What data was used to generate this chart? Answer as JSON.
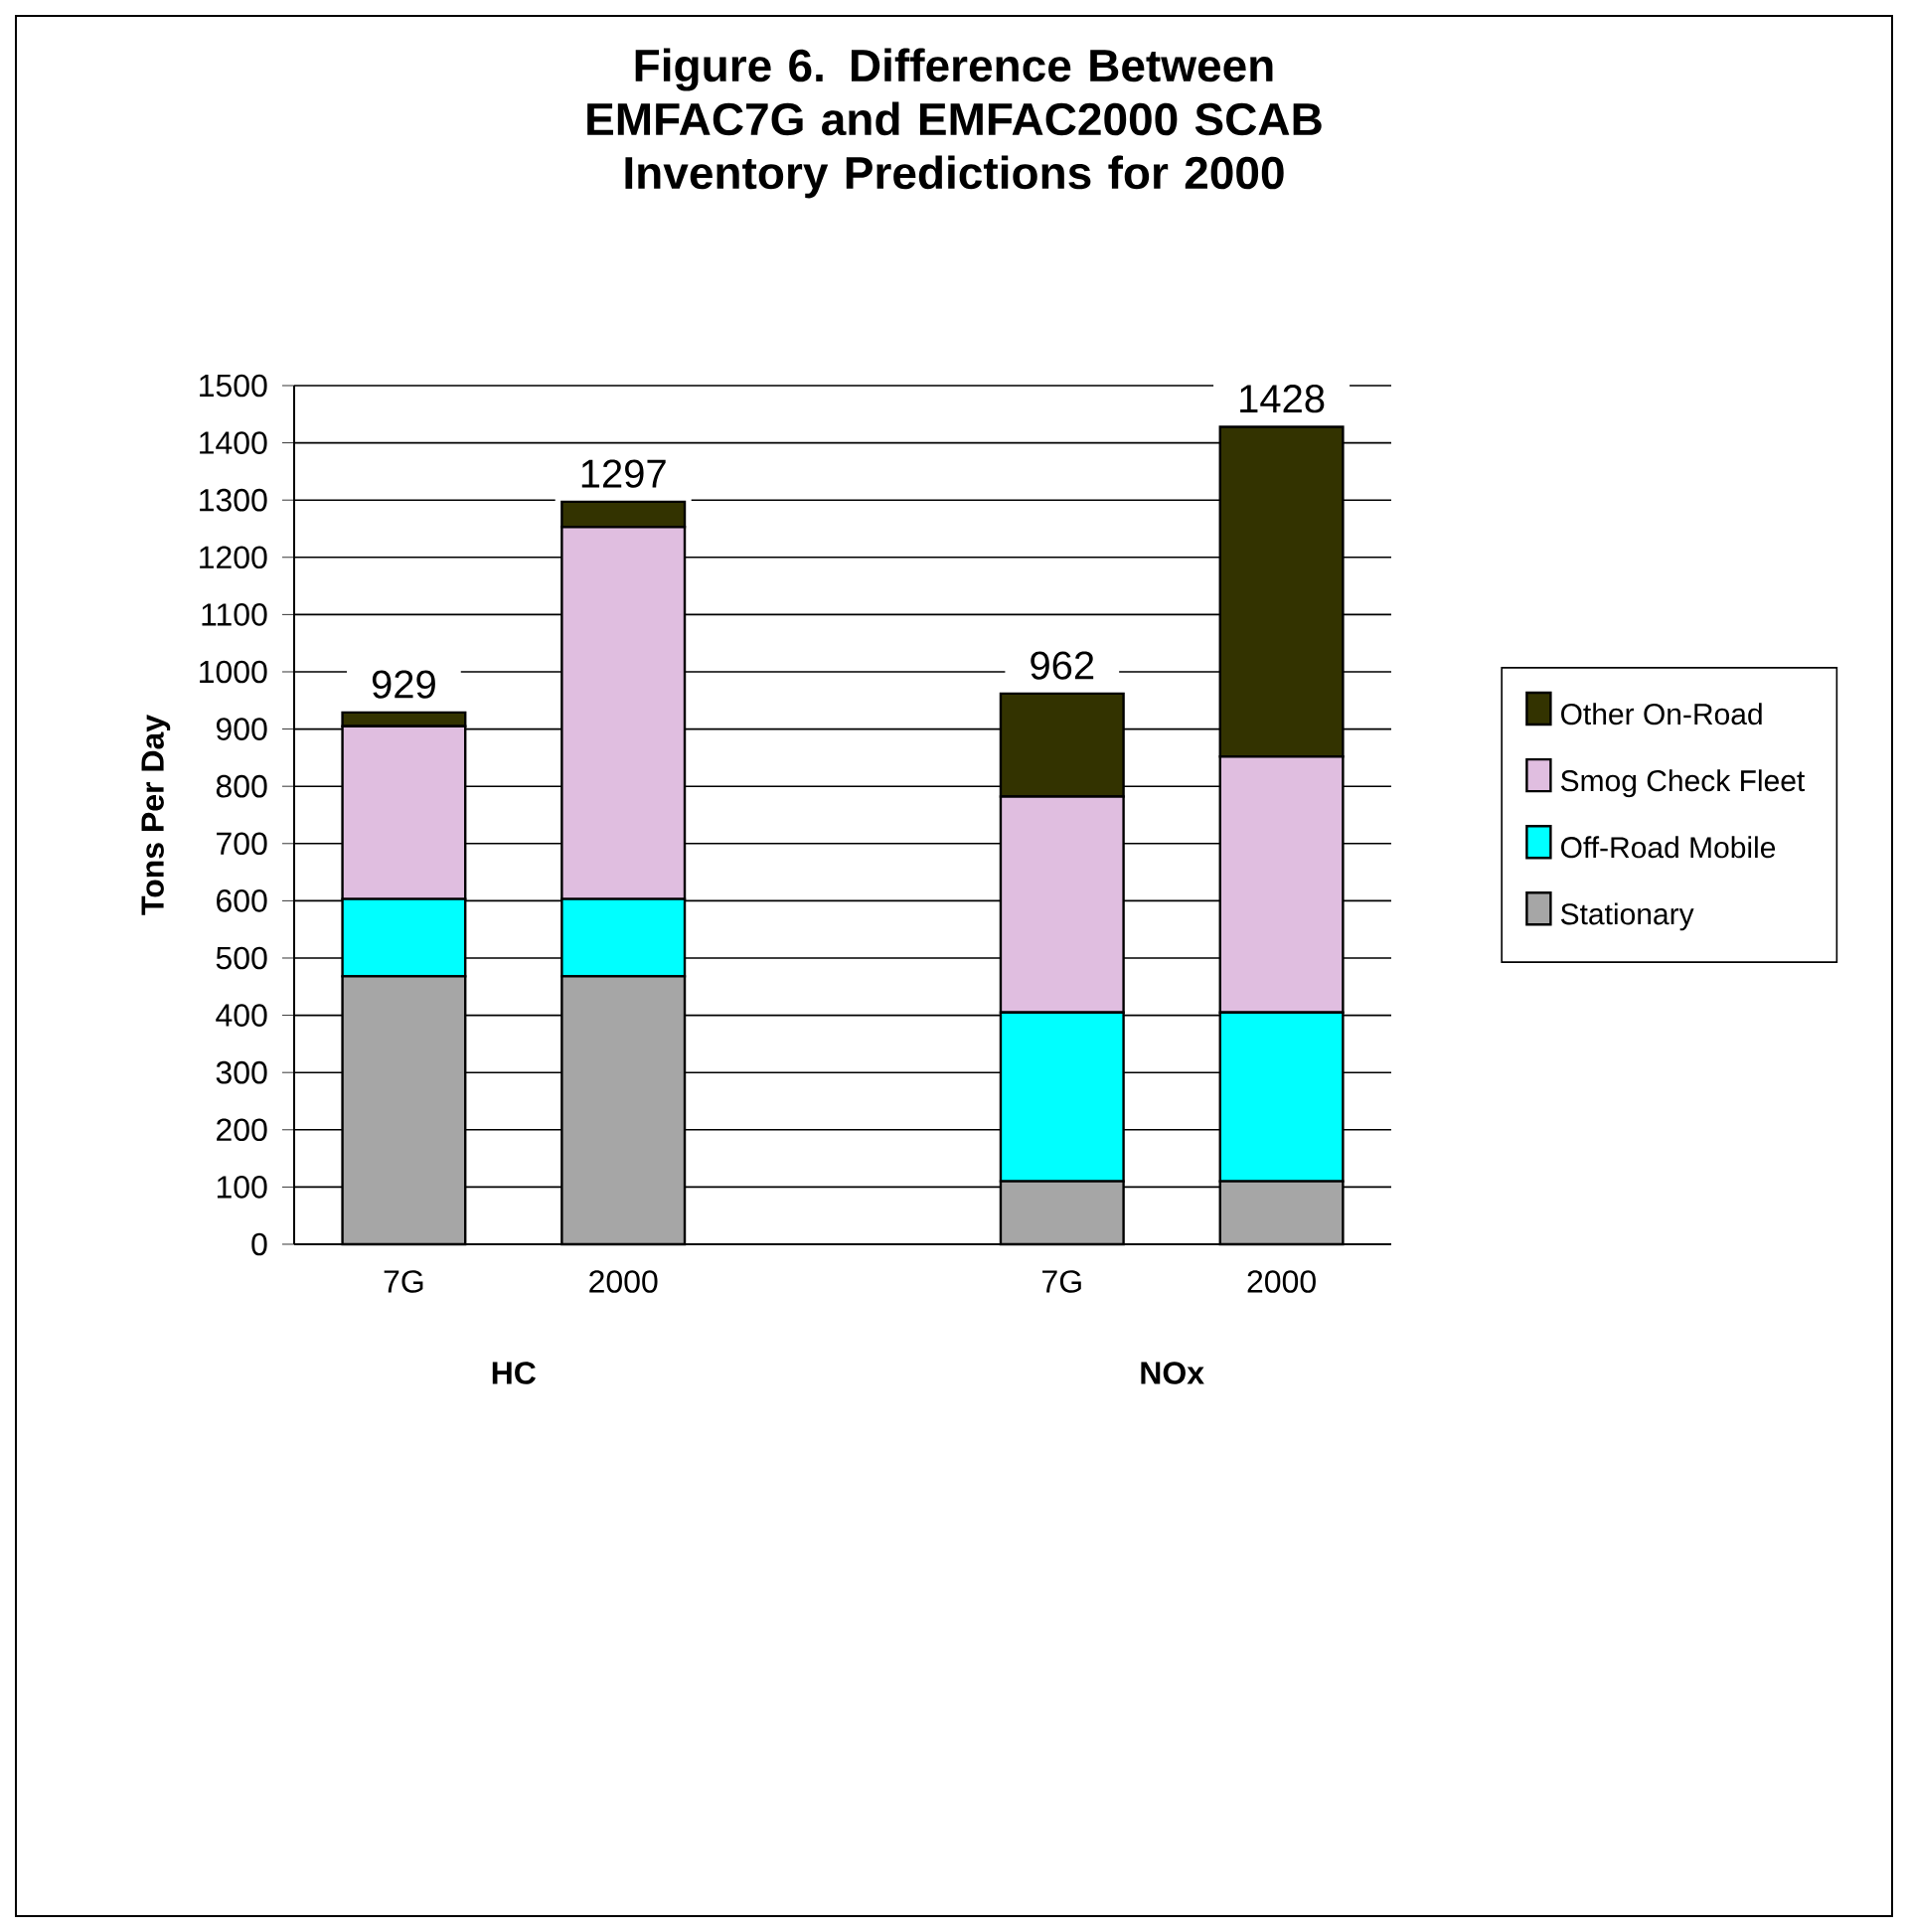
{
  "chart_data": {
    "type": "bar",
    "stacked": true,
    "title": "Figure 6. Difference Between EMFAC7G and EMFAC2000 SCAB Inventory Predictions for 2000",
    "ylabel": "Tons Per Day",
    "categories": [
      "7G",
      "2000",
      null,
      "7G",
      "2000"
    ],
    "series": [
      {
        "name": "Stationary",
        "color": "#a6a6a6",
        "values": [
          468,
          468,
          null,
          110,
          110
        ]
      },
      {
        "name": "Off-Road Mobile",
        "color": "#00ffff",
        "values": [
          135,
          135,
          null,
          295,
          295
        ]
      },
      {
        "name": "Smog Check Fleet",
        "color": "#e0bee0",
        "values": [
          302,
          650,
          null,
          377,
          447
        ]
      },
      {
        "name": "Other On-Road",
        "color": "#333300",
        "values": [
          24,
          44,
          null,
          180,
          576
        ]
      }
    ],
    "totals": [
      "929",
      "1297",
      null,
      "962",
      "1428"
    ],
    "annotations": [
      "HC",
      "NOx"
    ],
    "ylim": [
      0,
      1500
    ],
    "yticks": [
      0,
      100,
      200,
      300,
      400,
      500,
      600,
      700,
      800,
      900,
      1000,
      1100,
      1200,
      1300,
      1400,
      1500
    ],
    "grid": "y",
    "legend": "right"
  }
}
